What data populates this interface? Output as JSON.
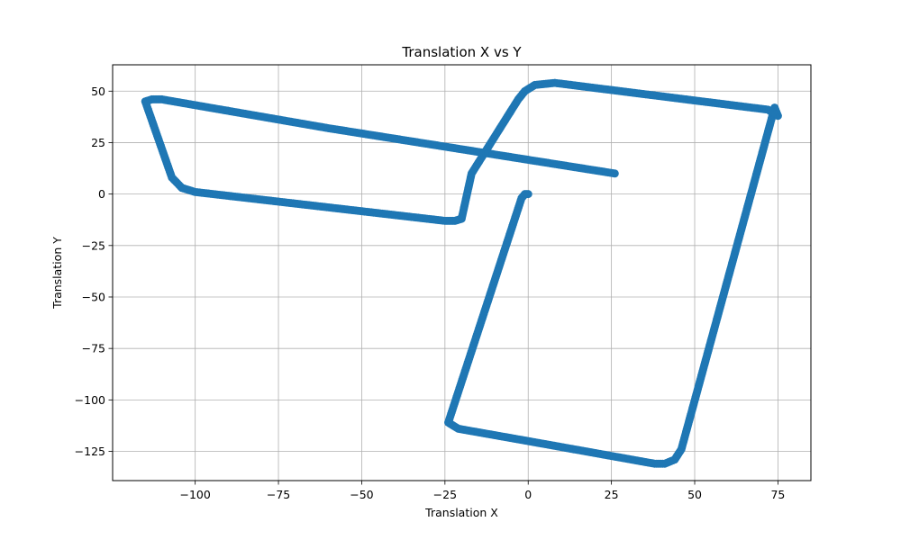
{
  "chart_data": {
    "type": "scatter",
    "title": "Translation X vs Y",
    "xlabel": "Translation X",
    "ylabel": "Translation Y",
    "xlim": [
      -124.8,
      84.9
    ],
    "ylim": [
      -139.2,
      62.8
    ],
    "xticks": [
      -100,
      -75,
      -50,
      -25,
      0,
      25,
      50,
      75
    ],
    "yticks": [
      50,
      25,
      0,
      -25,
      -50,
      -75,
      -100,
      -125
    ],
    "xtick_labels": [
      "−100",
      "−75",
      "−50",
      "−25",
      "0",
      "25",
      "50",
      "75"
    ],
    "ytick_labels": [
      "50",
      "25",
      "0",
      "−25",
      "−50",
      "−75",
      "−100",
      "−125"
    ],
    "grid": true,
    "series": [
      {
        "color": "#1f77b4",
        "vertices": [
          [
            0,
            0
          ],
          [
            -1,
            0
          ],
          [
            -2,
            -2
          ],
          [
            -24,
            -111
          ],
          [
            -21,
            -114
          ],
          [
            0,
            -120
          ],
          [
            38,
            -131
          ],
          [
            41,
            -131
          ],
          [
            44,
            -129
          ],
          [
            46,
            -124
          ],
          [
            74,
            42
          ],
          [
            75,
            38
          ],
          [
            72,
            41
          ],
          [
            8,
            54
          ],
          [
            2,
            53
          ],
          [
            -1,
            50
          ],
          [
            -3,
            46
          ],
          [
            -17,
            10
          ],
          [
            -20,
            -12
          ],
          [
            -22,
            -13
          ],
          [
            -25,
            -13
          ],
          [
            -100,
            1
          ],
          [
            -104,
            3
          ],
          [
            -107,
            8
          ],
          [
            -115,
            45
          ],
          [
            -113,
            46
          ],
          [
            -110,
            46
          ],
          [
            -60,
            32
          ],
          [
            26,
            10
          ]
        ]
      }
    ]
  }
}
